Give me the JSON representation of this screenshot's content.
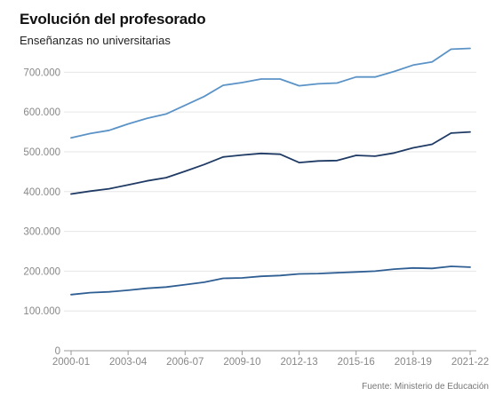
{
  "title": "Evolución del profesorado",
  "subtitle": "Enseñanzas no universitarias",
  "source": "Fuente: Ministerio de Educación",
  "chart_data": {
    "type": "line",
    "title": "Evolución del profesorado",
    "subtitle": "Enseñanzas no universitarias",
    "xlabel": "",
    "ylabel": "",
    "categories": [
      "2000-01",
      "2001-02",
      "2002-03",
      "2003-04",
      "2004-05",
      "2005-06",
      "2006-07",
      "2007-08",
      "2008-09",
      "2009-10",
      "2010-11",
      "2011-12",
      "2012-13",
      "2013-14",
      "2014-15",
      "2015-16",
      "2016-17",
      "2017-18",
      "2018-19",
      "2019-20",
      "2020-21",
      "2021-22"
    ],
    "x_tick_labels": [
      "2000-01",
      "2003-04",
      "2006-07",
      "2009-10",
      "2012-13",
      "2015-16",
      "2018-19",
      "2021-22"
    ],
    "y_tick_labels": [
      "0",
      "100.000",
      "200.000",
      "300.000",
      "400.000",
      "500.000",
      "600.000",
      "700.000"
    ],
    "y_ticks": [
      0,
      100000,
      200000,
      300000,
      400000,
      500000,
      600000,
      700000
    ],
    "ylim": [
      0,
      770000
    ],
    "grid": true,
    "legend": "none",
    "series": [
      {
        "color": "#5b93c7",
        "values": [
          535000,
          546000,
          554000,
          570000,
          584000,
          595000,
          617000,
          639000,
          667000,
          674000,
          683000,
          683000,
          666000,
          671000,
          673000,
          688000,
          688000,
          702000,
          718000,
          726000,
          758000,
          760000
        ]
      },
      {
        "color": "#1f3a64",
        "values": [
          394000,
          401000,
          407000,
          417000,
          427000,
          435000,
          451000,
          468000,
          487000,
          492000,
          496000,
          494000,
          473000,
          477000,
          478000,
          491000,
          489000,
          497000,
          510000,
          519000,
          547000,
          550000
        ]
      },
      {
        "color": "#2f5e93",
        "values": [
          141000,
          146000,
          148000,
          152000,
          157000,
          160000,
          166000,
          172000,
          182000,
          183000,
          187000,
          189000,
          193000,
          194000,
          196000,
          198000,
          200000,
          205000,
          208000,
          207000,
          212000,
          210000
        ]
      }
    ]
  }
}
